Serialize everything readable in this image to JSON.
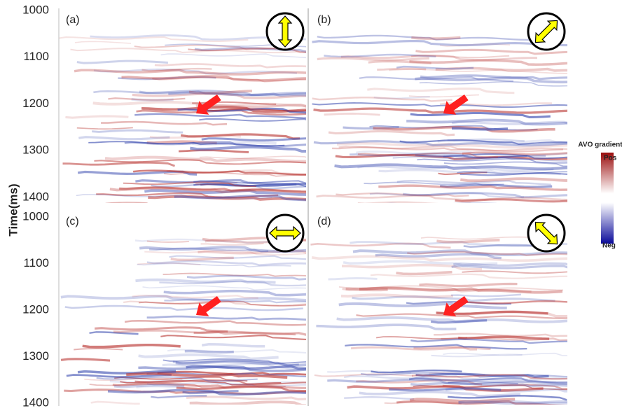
{
  "axis": {
    "label": "Time(ms)",
    "ticks": [
      "1000",
      "1100",
      "1200",
      "1300",
      "1400"
    ]
  },
  "panels": [
    {
      "label": "(a)"
    },
    {
      "label": "(b)"
    },
    {
      "label": "(c)"
    },
    {
      "label": "(d)"
    }
  ],
  "colorbar": {
    "title": "AVO gradient",
    "pos": "Pos",
    "neg": "Neg"
  }
}
